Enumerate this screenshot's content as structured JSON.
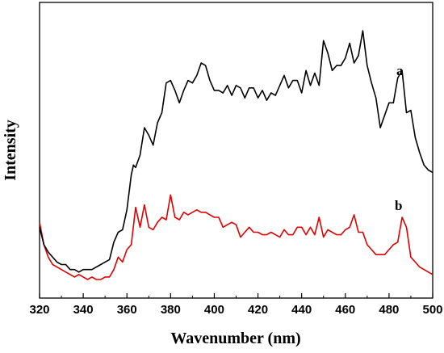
{
  "chart_data": {
    "type": "line",
    "xlabel": "Wavenumber (nm)",
    "ylabel": "Intensity",
    "xlim": [
      320,
      500
    ],
    "ylim": [
      0,
      1
    ],
    "x_ticks": [
      320,
      340,
      360,
      380,
      400,
      420,
      440,
      460,
      480,
      500
    ],
    "y_ticks_shown": false,
    "grid": false,
    "legend": "none",
    "series": [
      {
        "name": "a",
        "color": "#000000",
        "x": [
          320,
          322,
          324,
          326,
          328,
          330,
          332,
          334,
          336,
          338,
          340,
          342,
          344,
          346,
          348,
          350,
          352,
          354,
          356,
          358,
          360,
          362,
          363,
          364,
          366,
          368,
          370,
          372,
          374,
          376,
          378,
          380,
          382,
          384,
          386,
          388,
          390,
          392,
          394,
          396,
          398,
          400,
          402,
          404,
          406,
          408,
          410,
          412,
          414,
          416,
          418,
          420,
          422,
          424,
          426,
          428,
          430,
          432,
          434,
          436,
          438,
          440,
          442,
          444,
          446,
          448,
          450,
          452,
          454,
          456,
          458,
          460,
          462,
          464,
          466,
          468,
          470,
          472,
          474,
          476,
          478,
          480,
          482,
          484,
          486,
          488,
          490,
          492,
          494,
          496,
          498,
          500
        ],
        "y": [
          0.21,
          0.14,
          0.11,
          0.09,
          0.07,
          0.06,
          0.06,
          0.04,
          0.04,
          0.03,
          0.04,
          0.04,
          0.04,
          0.05,
          0.06,
          0.07,
          0.08,
          0.15,
          0.19,
          0.2,
          0.28,
          0.42,
          0.46,
          0.45,
          0.5,
          0.61,
          0.58,
          0.54,
          0.63,
          0.67,
          0.79,
          0.8,
          0.76,
          0.71,
          0.76,
          0.8,
          0.79,
          0.82,
          0.87,
          0.86,
          0.8,
          0.76,
          0.76,
          0.75,
          0.78,
          0.74,
          0.78,
          0.77,
          0.73,
          0.77,
          0.77,
          0.73,
          0.76,
          0.72,
          0.75,
          0.74,
          0.78,
          0.82,
          0.77,
          0.8,
          0.8,
          0.75,
          0.84,
          0.78,
          0.83,
          0.78,
          0.96,
          0.91,
          0.84,
          0.86,
          0.86,
          0.89,
          0.95,
          0.87,
          0.9,
          1.0,
          0.86,
          0.79,
          0.73,
          0.61,
          0.66,
          0.71,
          0.71,
          0.81,
          0.84,
          0.67,
          0.68,
          0.57,
          0.51,
          0.46,
          0.44,
          0.43
        ]
      },
      {
        "name": "b",
        "color": "#e00000",
        "x": [
          320,
          322,
          324,
          326,
          328,
          330,
          332,
          334,
          336,
          338,
          340,
          342,
          344,
          346,
          348,
          350,
          352,
          354,
          356,
          358,
          360,
          362,
          364,
          366,
          368,
          370,
          372,
          374,
          376,
          378,
          380,
          382,
          384,
          386,
          388,
          390,
          392,
          394,
          396,
          398,
          400,
          402,
          404,
          406,
          408,
          410,
          412,
          414,
          416,
          418,
          420,
          422,
          424,
          426,
          428,
          430,
          432,
          434,
          436,
          438,
          440,
          442,
          444,
          446,
          448,
          450,
          452,
          454,
          456,
          458,
          460,
          462,
          464,
          466,
          468,
          470,
          472,
          474,
          476,
          478,
          480,
          482,
          484,
          486,
          488,
          490,
          492,
          494,
          496,
          498,
          500
        ],
        "y": [
          0.23,
          0.14,
          0.09,
          0.06,
          0.05,
          0.04,
          0.03,
          0.02,
          0.01,
          0.02,
          0.01,
          0.0,
          0.01,
          0.0,
          0.0,
          0.01,
          0.01,
          0.04,
          0.09,
          0.07,
          0.12,
          0.14,
          0.29,
          0.21,
          0.3,
          0.21,
          0.2,
          0.23,
          0.25,
          0.24,
          0.34,
          0.25,
          0.24,
          0.27,
          0.26,
          0.27,
          0.28,
          0.27,
          0.27,
          0.26,
          0.25,
          0.25,
          0.21,
          0.22,
          0.23,
          0.22,
          0.17,
          0.19,
          0.21,
          0.19,
          0.19,
          0.18,
          0.18,
          0.19,
          0.18,
          0.17,
          0.2,
          0.18,
          0.18,
          0.21,
          0.21,
          0.18,
          0.21,
          0.18,
          0.25,
          0.17,
          0.2,
          0.19,
          0.18,
          0.18,
          0.2,
          0.21,
          0.26,
          0.19,
          0.19,
          0.14,
          0.12,
          0.1,
          0.1,
          0.1,
          0.12,
          0.14,
          0.15,
          0.25,
          0.21,
          0.09,
          0.07,
          0.05,
          0.04,
          0.03,
          0.02
        ]
      }
    ]
  }
}
